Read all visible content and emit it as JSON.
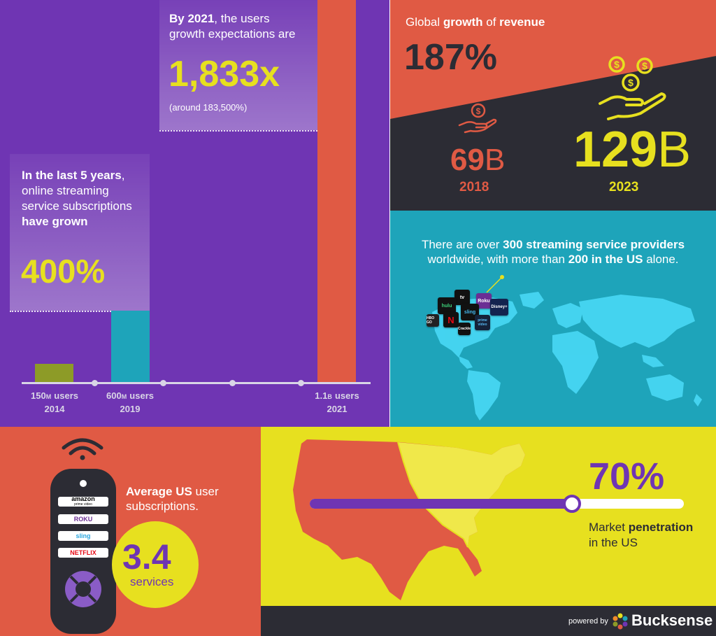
{
  "growth": {
    "intro": {
      "line1_bold": "In the last 5 years",
      "line1_rest": ",",
      "line2": "online streaming",
      "line3": "service subscriptions",
      "line4_bold": "have grown"
    },
    "percent": "400%",
    "expect": {
      "bold": "By 2021",
      "rest": ", the users",
      "line2": "growth expectations are",
      "value": "1,833x",
      "note": "(around 183,500%)"
    },
    "axis": [
      {
        "num": "150",
        "unit": "M",
        "label": " users",
        "year": "2014"
      },
      {
        "num": "600",
        "unit": "M",
        "label": " users",
        "year": "2019"
      },
      {
        "num": "1.1",
        "unit": "B",
        "label": " users",
        "year": "2021"
      }
    ],
    "bar_colors": {
      "2014": "#8d9b27",
      "2019": "#1ea4ba",
      "2021": "#e05a44"
    }
  },
  "revenue": {
    "heading_pre": "Global ",
    "heading_b1": "growth",
    "heading_mid": " of ",
    "heading_b2": "revenue",
    "percent": "187%",
    "y2018_value": "69",
    "y2018_unit": "B",
    "y2018_year": "2018",
    "y2023_value": "129",
    "y2023_unit": "B",
    "y2023_year": "2023",
    "icons": [
      "hand-coin-icon",
      "hand-coins-icon"
    ]
  },
  "providers": {
    "t1": "There are over ",
    "t2": "300 streaming service providers",
    "t3": "worldwide, with more than ",
    "t4": "200 in the US",
    "t5": " alone.",
    "logos": [
      "tv",
      "hulu",
      "Roku",
      "Disney+",
      "sling",
      "prime video",
      "NETFLIX",
      "HBO GO",
      "Crackle"
    ]
  },
  "subscriptions": {
    "label_bold": "Average US",
    "label_rest": " user",
    "label_line2": "subscriptions.",
    "value": "3.4",
    "unit": "services",
    "remote_buttons": [
      "amazon",
      "ROKU",
      "sling",
      "NETFLIX"
    ],
    "remote_sub": "prime video"
  },
  "penetration": {
    "value": "70%",
    "fill_fraction": 0.7,
    "label_pre": "Market ",
    "label_bold": "penetration",
    "label_line2": "in the US"
  },
  "footer": {
    "powered_by": "powered by",
    "brand": "Bucksense"
  },
  "colors": {
    "purple": "#6f35b3",
    "red": "#e05a44",
    "yellow": "#e7e01f",
    "charcoal": "#2c2c34",
    "teal": "#1ea4ba",
    "olive": "#8d9b27"
  }
}
